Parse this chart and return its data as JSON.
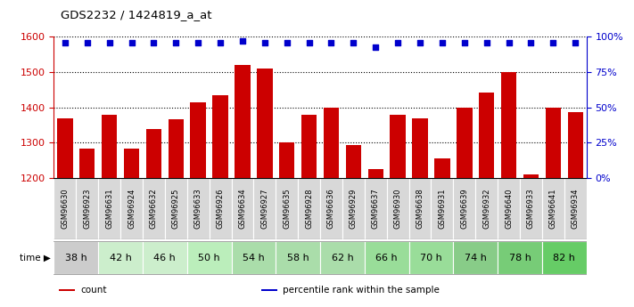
{
  "title": "GDS2232 / 1424819_a_at",
  "samples": [
    "GSM96630",
    "GSM96923",
    "GSM96631",
    "GSM96924",
    "GSM96632",
    "GSM96925",
    "GSM96633",
    "GSM96926",
    "GSM96634",
    "GSM96927",
    "GSM96635",
    "GSM96928",
    "GSM96636",
    "GSM96929",
    "GSM96637",
    "GSM96930",
    "GSM96638",
    "GSM96931",
    "GSM96639",
    "GSM96932",
    "GSM96640",
    "GSM96933",
    "GSM96641",
    "GSM96934"
  ],
  "counts": [
    1368,
    1283,
    1380,
    1283,
    1338,
    1367,
    1415,
    1435,
    1520,
    1510,
    1300,
    1380,
    1400,
    1293,
    1225,
    1380,
    1370,
    1255,
    1400,
    1443,
    1500,
    1210,
    1400,
    1388
  ],
  "percentile_ranks": [
    96,
    96,
    96,
    96,
    96,
    96,
    96,
    96,
    97,
    96,
    96,
    96,
    96,
    96,
    93,
    96,
    96,
    96,
    96,
    96,
    96,
    96,
    96,
    96
  ],
  "time_groups": [
    {
      "label": "38 h",
      "indices": [
        0,
        1
      ]
    },
    {
      "label": "42 h",
      "indices": [
        2,
        3
      ]
    },
    {
      "label": "46 h",
      "indices": [
        4,
        5
      ]
    },
    {
      "label": "50 h",
      "indices": [
        6,
        7
      ]
    },
    {
      "label": "54 h",
      "indices": [
        8,
        9
      ]
    },
    {
      "label": "58 h",
      "indices": [
        10,
        11
      ]
    },
    {
      "label": "62 h",
      "indices": [
        12,
        13
      ]
    },
    {
      "label": "66 h",
      "indices": [
        14,
        15
      ]
    },
    {
      "label": "70 h",
      "indices": [
        16,
        17
      ]
    },
    {
      "label": "74 h",
      "indices": [
        18,
        19
      ]
    },
    {
      "label": "78 h",
      "indices": [
        20,
        21
      ]
    },
    {
      "label": "82 h",
      "indices": [
        22,
        23
      ]
    }
  ],
  "time_group_colors": [
    "#cccccc",
    "#c8eac8",
    "#cccccc",
    "#c8eac8",
    "#b8e0b8",
    "#b8e0b8",
    "#b8e0b8",
    "#a8d8a8",
    "#a8d8a8",
    "#a8d8a8",
    "#88cc88",
    "#88cc88"
  ],
  "ylim_left": [
    1200,
    1600
  ],
  "ylim_right": [
    0,
    100
  ],
  "yticks_left": [
    1200,
    1300,
    1400,
    1500,
    1600
  ],
  "yticks_right": [
    0,
    25,
    50,
    75,
    100
  ],
  "bar_color": "#cc0000",
  "dot_color": "#0000cc",
  "sample_box_color": "#d8d8d8",
  "background_color": "#ffffff",
  "legend_items": [
    {
      "label": "count",
      "color": "#cc0000"
    },
    {
      "label": "percentile rank within the sample",
      "color": "#0000cc"
    }
  ]
}
